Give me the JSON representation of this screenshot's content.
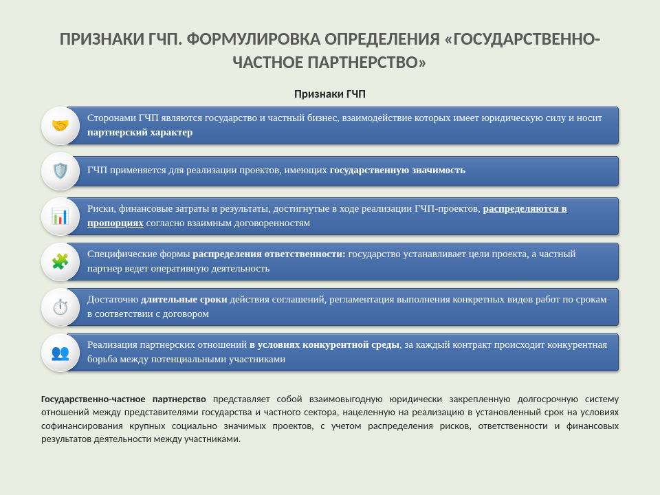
{
  "title": "ПРИЗНАКИ ГЧП. ФОРМУЛИРОВКА ОПРЕДЕЛЕНИЯ «ГОСУДАРСТВЕННО-ЧАСТНОЕ ПАРТНЕРСТВО»",
  "subtitle": "Признаки ГЧП",
  "items": [
    {
      "icon": "🤝",
      "pre": "Сторонами ГЧП являются государство и частный бизнес, взаимодействие которых имеет юридическую силу и носит ",
      "bold": "партнерский характер",
      "post": ""
    },
    {
      "icon": "🛡️",
      "pre": "ГЧП применяется для реализации проектов, имеющих ",
      "bold": "государственную значимость",
      "post": ""
    },
    {
      "icon": "📊",
      "pre": "Риски, финансовые затраты и результаты, достигнутые в ходе реализации ГЧП-проектов, ",
      "bold": "распределяются в пропорциях",
      "post": " согласно взаимным договоренностям"
    },
    {
      "icon": "🧩",
      "pre": "Специфические формы ",
      "bold": "распределения ответственности:",
      "post": " государство устанавливает цели проекта, а частный партнер ведет оперативную деятельность"
    },
    {
      "icon": "⏱️",
      "pre": "Достаточно ",
      "bold": "длительные сроки",
      "post": " действия соглашений, регламентация выполнения конкретных видов работ по срокам в соответствии с договором"
    },
    {
      "icon": "👥",
      "pre": "Реализация партнерских отношений ",
      "bold": "в условиях конкурентной среды",
      "post": ", за каждый контракт происходит конкурентная борьба между потенциальными участниками"
    }
  ],
  "footer": {
    "lead": "Государственно-частное партнерство",
    "text": " представляет собой взаимовыгодную юридически закрепленную долгосрочную систему отношений между представителями государства и частного сектора, нацеленную на реализацию в установленный срок на условиях софинансирования крупных социально значимых проектов, с учетом распределения рисков, ответственности и финансовых результатов деятельности между участниками."
  },
  "style": {
    "bg": "#eaeee2",
    "title_color": "#595959",
    "bar_gradient_top": "#5a7db5",
    "bar_gradient_bottom": "#3f66a0",
    "bar_border": "#2e4a72",
    "bar_text": "#ffffff"
  }
}
